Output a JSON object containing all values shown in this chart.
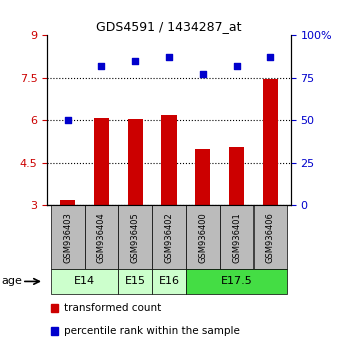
{
  "title": "GDS4591 / 1434287_at",
  "samples": [
    "GSM936403",
    "GSM936404",
    "GSM936405",
    "GSM936402",
    "GSM936400",
    "GSM936401",
    "GSM936406"
  ],
  "transformed_counts": [
    3.2,
    6.1,
    6.05,
    6.2,
    5.0,
    5.05,
    7.45
  ],
  "percentile_ranks": [
    50,
    82,
    85,
    87,
    77,
    82,
    87
  ],
  "ylim_left": [
    3,
    9
  ],
  "ylim_right": [
    0,
    100
  ],
  "yticks_left": [
    3,
    4.5,
    6,
    7.5,
    9
  ],
  "yticks_right": [
    0,
    25,
    50,
    75,
    100
  ],
  "ytick_labels_left": [
    "3",
    "4.5",
    "6",
    "7.5",
    "9"
  ],
  "ytick_labels_right": [
    "0",
    "25",
    "50",
    "75",
    "100%"
  ],
  "bar_color": "#cc0000",
  "dot_color": "#0000cc",
  "bar_bottom": 3,
  "age_groups": [
    {
      "label": "E14",
      "samples": [
        0,
        1
      ],
      "color": "#ccffcc"
    },
    {
      "label": "E15",
      "samples": [
        2
      ],
      "color": "#ccffcc"
    },
    {
      "label": "E16",
      "samples": [
        3
      ],
      "color": "#ccffcc"
    },
    {
      "label": "E17.5",
      "samples": [
        4,
        5,
        6
      ],
      "color": "#44dd44"
    }
  ],
  "grid_color": "#000000",
  "background_color": "#ffffff",
  "sample_box_color": "#bbbbbb",
  "legend_items": [
    {
      "color": "#cc0000",
      "label": "transformed count"
    },
    {
      "color": "#0000cc",
      "label": "percentile rank within the sample"
    }
  ]
}
